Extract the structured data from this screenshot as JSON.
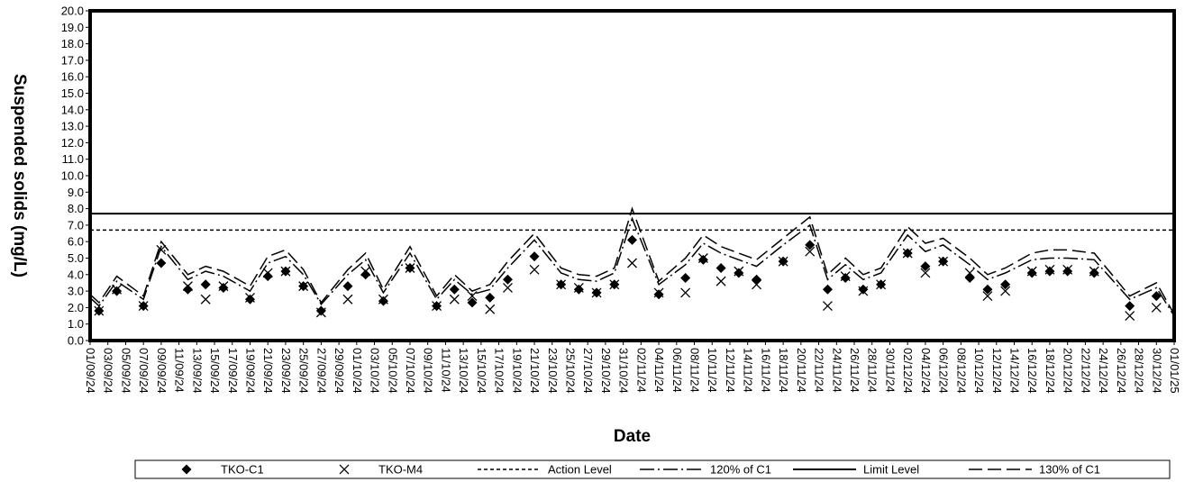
{
  "chart_data": {
    "type": "line",
    "title": "",
    "xlabel": "Date",
    "ylabel": "Suspended solids (mg/L)",
    "ylim": [
      0,
      20
    ],
    "ytick_step": 1,
    "ytick_labels": [
      "0.0",
      "1.0",
      "2.0",
      "3.0",
      "4.0",
      "5.0",
      "6.0",
      "7.0",
      "8.0",
      "9.0",
      "10.0",
      "11.0",
      "12.0",
      "13.0",
      "14.0",
      "15.0",
      "16.0",
      "17.0",
      "18.0",
      "19.0",
      "20.0"
    ],
    "x_start": "2024-09-01",
    "x_end": "2025-01-01",
    "x_ticks": [
      "01/09/24",
      "03/09/24",
      "05/09/24",
      "07/09/24",
      "09/09/24",
      "11/09/24",
      "13/09/24",
      "15/09/24",
      "17/09/24",
      "19/09/24",
      "21/09/24",
      "23/09/24",
      "25/09/24",
      "27/09/24",
      "29/09/24",
      "01/10/24",
      "03/10/24",
      "05/10/24",
      "07/10/24",
      "09/10/24",
      "11/10/24",
      "13/10/24",
      "15/10/24",
      "17/10/24",
      "19/10/24",
      "21/10/24",
      "23/10/24",
      "25/10/24",
      "27/10/24",
      "29/10/24",
      "31/10/24",
      "02/11/24",
      "04/11/24",
      "06/11/24",
      "08/11/24",
      "10/11/24",
      "12/11/24",
      "14/11/24",
      "16/11/24",
      "18/11/24",
      "20/11/24",
      "22/11/24",
      "24/11/24",
      "26/11/24",
      "28/11/24",
      "30/11/24",
      "02/12/24",
      "04/12/24",
      "06/12/24",
      "08/12/24",
      "10/12/24",
      "12/12/24",
      "14/12/24",
      "16/12/24",
      "18/12/24",
      "20/12/24",
      "22/12/24",
      "24/12/24",
      "26/12/24",
      "28/12/24",
      "30/12/24",
      "01/01/25"
    ],
    "grid": false,
    "legend_position": "bottom",
    "series": [
      {
        "name": "TKO-C1",
        "style": "diamond",
        "color": "#000000",
        "x": [
          "2024-09-02",
          "2024-09-04",
          "2024-09-07",
          "2024-09-09",
          "2024-09-12",
          "2024-09-14",
          "2024-09-16",
          "2024-09-19",
          "2024-09-21",
          "2024-09-23",
          "2024-09-25",
          "2024-09-27",
          "2024-09-30",
          "2024-10-02",
          "2024-10-04",
          "2024-10-07",
          "2024-10-10",
          "2024-10-12",
          "2024-10-14",
          "2024-10-16",
          "2024-10-18",
          "2024-10-21",
          "2024-10-24",
          "2024-10-26",
          "2024-10-28",
          "2024-10-30",
          "2024-11-01",
          "2024-11-04",
          "2024-11-07",
          "2024-11-09",
          "2024-11-11",
          "2024-11-13",
          "2024-11-15",
          "2024-11-18",
          "2024-11-21",
          "2024-11-23",
          "2024-11-25",
          "2024-11-27",
          "2024-11-29",
          "2024-12-02",
          "2024-12-04",
          "2024-12-06",
          "2024-12-09",
          "2024-12-11",
          "2024-12-13",
          "2024-12-16",
          "2024-12-18",
          "2024-12-20",
          "2024-12-23",
          "2024-12-27",
          "2024-12-30"
        ],
        "y": [
          1.8,
          3.0,
          2.1,
          4.7,
          3.1,
          3.4,
          3.2,
          2.5,
          3.9,
          4.2,
          3.3,
          1.8,
          3.3,
          4.0,
          2.4,
          4.4,
          2.1,
          3.1,
          2.3,
          2.6,
          3.7,
          5.1,
          3.4,
          3.1,
          2.9,
          3.4,
          6.1,
          2.8,
          3.8,
          4.9,
          4.4,
          4.1,
          3.7,
          4.8,
          5.8,
          3.1,
          3.8,
          3.1,
          3.4,
          5.3,
          4.5,
          4.8,
          3.8,
          3.1,
          3.4,
          4.1,
          4.2,
          4.2,
          4.1,
          2.1,
          2.7
        ]
      },
      {
        "name": "TKO-M4",
        "style": "cross",
        "color": "#000000",
        "x": [
          "2024-09-02",
          "2024-09-04",
          "2024-09-07",
          "2024-09-09",
          "2024-09-12",
          "2024-09-14",
          "2024-09-16",
          "2024-09-19",
          "2024-09-21",
          "2024-09-23",
          "2024-09-25",
          "2024-09-27",
          "2024-09-30",
          "2024-10-02",
          "2024-10-04",
          "2024-10-07",
          "2024-10-10",
          "2024-10-12",
          "2024-10-14",
          "2024-10-16",
          "2024-10-18",
          "2024-10-21",
          "2024-10-24",
          "2024-10-26",
          "2024-10-28",
          "2024-10-30",
          "2024-11-01",
          "2024-11-04",
          "2024-11-07",
          "2024-11-09",
          "2024-11-11",
          "2024-11-13",
          "2024-11-15",
          "2024-11-18",
          "2024-11-21",
          "2024-11-23",
          "2024-11-25",
          "2024-11-27",
          "2024-11-29",
          "2024-12-02",
          "2024-12-04",
          "2024-12-06",
          "2024-12-09",
          "2024-12-11",
          "2024-12-13",
          "2024-12-16",
          "2024-12-18",
          "2024-12-20",
          "2024-12-23",
          "2024-12-27",
          "2024-12-30"
        ],
        "y": [
          1.8,
          3.1,
          2.1,
          5.5,
          3.3,
          2.5,
          3.3,
          2.6,
          4.1,
          4.2,
          3.3,
          1.7,
          2.5,
          4.2,
          2.5,
          4.4,
          2.1,
          2.5,
          2.7,
          1.9,
          3.2,
          4.3,
          3.4,
          3.2,
          2.9,
          3.4,
          4.7,
          2.9,
          2.9,
          5.0,
          3.6,
          4.2,
          3.4,
          4.8,
          5.4,
          2.1,
          3.9,
          3.0,
          3.4,
          5.3,
          4.1,
          4.8,
          4.1,
          2.7,
          3.0,
          4.2,
          4.3,
          4.3,
          4.2,
          1.5,
          2.0
        ]
      },
      {
        "name": "Action Level",
        "style": "dashed",
        "color": "#000000",
        "x": [
          "2024-09-01",
          "2025-01-01"
        ],
        "y": [
          6.7,
          6.7
        ]
      },
      {
        "name": "120% of C1",
        "style": "dashdot",
        "color": "#000000",
        "x": [
          "2024-09-01",
          "2024-09-02",
          "2024-09-04",
          "2024-09-07",
          "2024-09-09",
          "2024-09-12",
          "2024-09-14",
          "2024-09-16",
          "2024-09-19",
          "2024-09-21",
          "2024-09-23",
          "2024-09-25",
          "2024-09-27",
          "2024-09-30",
          "2024-10-02",
          "2024-10-04",
          "2024-10-07",
          "2024-10-10",
          "2024-10-12",
          "2024-10-14",
          "2024-10-16",
          "2024-10-18",
          "2024-10-21",
          "2024-10-24",
          "2024-10-26",
          "2024-10-28",
          "2024-10-30",
          "2024-11-01",
          "2024-11-04",
          "2024-11-07",
          "2024-11-09",
          "2024-11-11",
          "2024-11-13",
          "2024-11-15",
          "2024-11-18",
          "2024-11-21",
          "2024-11-23",
          "2024-11-25",
          "2024-11-27",
          "2024-11-29",
          "2024-12-02",
          "2024-12-04",
          "2024-12-06",
          "2024-12-09",
          "2024-12-11",
          "2024-12-13",
          "2024-12-16",
          "2024-12-18",
          "2024-12-20",
          "2024-12-23",
          "2024-12-27",
          "2024-12-30",
          "2025-01-01"
        ],
        "y": [
          2.6,
          2.1,
          3.6,
          2.5,
          5.7,
          3.7,
          4.2,
          3.9,
          3.0,
          4.7,
          5.1,
          4.0,
          2.2,
          4.0,
          4.9,
          2.9,
          5.3,
          2.5,
          3.7,
          2.8,
          3.1,
          4.4,
          6.1,
          4.1,
          3.7,
          3.6,
          4.1,
          7.4,
          3.4,
          4.6,
          5.9,
          5.3,
          4.9,
          4.5,
          5.8,
          7.0,
          3.7,
          4.6,
          3.7,
          4.1,
          6.4,
          5.4,
          5.8,
          4.6,
          3.7,
          4.1,
          4.9,
          5.0,
          5.0,
          4.9,
          2.5,
          3.2,
          1.5
        ]
      },
      {
        "name": "Limit Level",
        "style": "solid",
        "color": "#000000",
        "x": [
          "2024-09-01",
          "2025-01-01"
        ],
        "y": [
          7.7,
          7.7
        ]
      },
      {
        "name": "130% of C1",
        "style": "longdash",
        "color": "#000000",
        "x": [
          "2024-09-01",
          "2024-09-02",
          "2024-09-04",
          "2024-09-07",
          "2024-09-09",
          "2024-09-12",
          "2024-09-14",
          "2024-09-16",
          "2024-09-19",
          "2024-09-21",
          "2024-09-23",
          "2024-09-25",
          "2024-09-27",
          "2024-09-30",
          "2024-10-02",
          "2024-10-04",
          "2024-10-07",
          "2024-10-10",
          "2024-10-12",
          "2024-10-14",
          "2024-10-16",
          "2024-10-18",
          "2024-10-21",
          "2024-10-24",
          "2024-10-26",
          "2024-10-28",
          "2024-10-30",
          "2024-11-01",
          "2024-11-04",
          "2024-11-07",
          "2024-11-09",
          "2024-11-11",
          "2024-11-13",
          "2024-11-15",
          "2024-11-18",
          "2024-11-21",
          "2024-11-23",
          "2024-11-25",
          "2024-11-27",
          "2024-11-29",
          "2024-12-02",
          "2024-12-04",
          "2024-12-06",
          "2024-12-09",
          "2024-12-11",
          "2024-12-13",
          "2024-12-16",
          "2024-12-18",
          "2024-12-20",
          "2024-12-23",
          "2024-12-27",
          "2024-12-30",
          "2025-01-01"
        ],
        "y": [
          2.8,
          2.3,
          3.9,
          2.7,
          6.0,
          4.0,
          4.5,
          4.2,
          3.3,
          5.1,
          5.5,
          4.3,
          2.3,
          4.3,
          5.3,
          3.1,
          5.7,
          2.7,
          4.0,
          3.0,
          3.4,
          4.8,
          6.5,
          4.4,
          4.0,
          3.9,
          4.4,
          8.0,
          3.6,
          5.0,
          6.4,
          5.7,
          5.3,
          4.9,
          6.2,
          7.5,
          4.0,
          5.0,
          4.0,
          4.4,
          6.9,
          5.9,
          6.2,
          5.0,
          4.0,
          4.4,
          5.3,
          5.5,
          5.5,
          5.3,
          2.7,
          3.5,
          1.6
        ]
      }
    ]
  }
}
